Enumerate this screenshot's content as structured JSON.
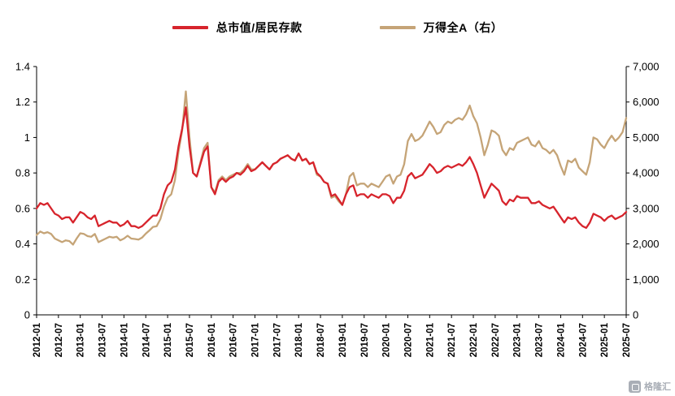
{
  "legend": [
    {
      "label": "总市值/居民存款",
      "color": "#d7242c"
    },
    {
      "label": "万得全A（右）",
      "color": "#c5a477"
    }
  ],
  "watermark": {
    "text": "格隆汇"
  },
  "chart_data": {
    "type": "line",
    "title": "",
    "xlabel": "",
    "ylabel_left": "",
    "ylabel_right": "",
    "grid": false,
    "legend_position": "top-center",
    "x": [
      "2012-01",
      "2012-02",
      "2012-03",
      "2012-04",
      "2012-05",
      "2012-06",
      "2012-07",
      "2012-08",
      "2012-09",
      "2012-10",
      "2012-11",
      "2012-12",
      "2013-01",
      "2013-02",
      "2013-03",
      "2013-04",
      "2013-05",
      "2013-06",
      "2013-07",
      "2013-08",
      "2013-09",
      "2013-10",
      "2013-11",
      "2013-12",
      "2014-01",
      "2014-02",
      "2014-03",
      "2014-04",
      "2014-05",
      "2014-06",
      "2014-07",
      "2014-08",
      "2014-09",
      "2014-10",
      "2014-11",
      "2014-12",
      "2015-01",
      "2015-02",
      "2015-03",
      "2015-04",
      "2015-05",
      "2015-06",
      "2015-07",
      "2015-08",
      "2015-09",
      "2015-10",
      "2015-11",
      "2015-12",
      "2016-01",
      "2016-02",
      "2016-03",
      "2016-04",
      "2016-05",
      "2016-06",
      "2016-07",
      "2016-08",
      "2016-09",
      "2016-10",
      "2016-11",
      "2016-12",
      "2017-01",
      "2017-02",
      "2017-03",
      "2017-04",
      "2017-05",
      "2017-06",
      "2017-07",
      "2017-08",
      "2017-09",
      "2017-10",
      "2017-11",
      "2017-12",
      "2018-01",
      "2018-02",
      "2018-03",
      "2018-04",
      "2018-05",
      "2018-06",
      "2018-07",
      "2018-08",
      "2018-09",
      "2018-10",
      "2018-11",
      "2018-12",
      "2019-01",
      "2019-02",
      "2019-03",
      "2019-04",
      "2019-05",
      "2019-06",
      "2019-07",
      "2019-08",
      "2019-09",
      "2019-10",
      "2019-11",
      "2019-12",
      "2020-01",
      "2020-02",
      "2020-03",
      "2020-04",
      "2020-05",
      "2020-06",
      "2020-07",
      "2020-08",
      "2020-09",
      "2020-10",
      "2020-11",
      "2020-12",
      "2021-01",
      "2021-02",
      "2021-03",
      "2021-04",
      "2021-05",
      "2021-06",
      "2021-07",
      "2021-08",
      "2021-09",
      "2021-10",
      "2021-11",
      "2021-12",
      "2022-01",
      "2022-02",
      "2022-03",
      "2022-04",
      "2022-05",
      "2022-06",
      "2022-07",
      "2022-08",
      "2022-09",
      "2022-10",
      "2022-11",
      "2022-12",
      "2023-01",
      "2023-02",
      "2023-03",
      "2023-04",
      "2023-05",
      "2023-06",
      "2023-07",
      "2023-08",
      "2023-09",
      "2023-10",
      "2023-11",
      "2023-12",
      "2024-01",
      "2024-02",
      "2024-03",
      "2024-04",
      "2024-05",
      "2024-06",
      "2024-07",
      "2024-08",
      "2024-09",
      "2024-10",
      "2024-11",
      "2024-12",
      "2025-01",
      "2025-02",
      "2025-03",
      "2025-04",
      "2025-05",
      "2025-06",
      "2025-07"
    ],
    "x_tick_labels": [
      "2012-01",
      "2012-07",
      "2013-01",
      "2013-07",
      "2014-01",
      "2014-07",
      "2015-01",
      "2015-07",
      "2016-01",
      "2016-07",
      "2017-01",
      "2017-07",
      "2018-01",
      "2018-07",
      "2019-01",
      "2019-07",
      "2020-01",
      "2020-07",
      "2021-01",
      "2021-07",
      "2022-01",
      "2022-07",
      "2023-01",
      "2023-07",
      "2024-01",
      "2024-07",
      "2025-01",
      "2025-07"
    ],
    "x_tick_step_months": 6,
    "series": [
      {
        "name": "总市值/居民存款",
        "axis": "left",
        "color": "#d7242c",
        "values": [
          0.6,
          0.63,
          0.62,
          0.63,
          0.6,
          0.57,
          0.56,
          0.54,
          0.55,
          0.55,
          0.52,
          0.55,
          0.58,
          0.57,
          0.55,
          0.54,
          0.56,
          0.5,
          0.51,
          0.52,
          0.53,
          0.52,
          0.52,
          0.5,
          0.51,
          0.53,
          0.5,
          0.5,
          0.49,
          0.5,
          0.52,
          0.54,
          0.56,
          0.56,
          0.6,
          0.68,
          0.73,
          0.75,
          0.82,
          0.95,
          1.05,
          1.17,
          0.95,
          0.8,
          0.78,
          0.85,
          0.92,
          0.95,
          0.72,
          0.68,
          0.75,
          0.77,
          0.75,
          0.77,
          0.78,
          0.8,
          0.79,
          0.81,
          0.84,
          0.81,
          0.82,
          0.84,
          0.86,
          0.84,
          0.82,
          0.85,
          0.86,
          0.88,
          0.89,
          0.9,
          0.88,
          0.87,
          0.91,
          0.87,
          0.88,
          0.85,
          0.86,
          0.8,
          0.78,
          0.75,
          0.74,
          0.67,
          0.68,
          0.65,
          0.62,
          0.68,
          0.72,
          0.73,
          0.67,
          0.68,
          0.68,
          0.66,
          0.68,
          0.67,
          0.66,
          0.68,
          0.68,
          0.67,
          0.63,
          0.66,
          0.66,
          0.7,
          0.78,
          0.8,
          0.77,
          0.78,
          0.79,
          0.82,
          0.85,
          0.83,
          0.8,
          0.81,
          0.83,
          0.84,
          0.83,
          0.84,
          0.85,
          0.84,
          0.86,
          0.89,
          0.85,
          0.8,
          0.73,
          0.66,
          0.7,
          0.74,
          0.72,
          0.7,
          0.64,
          0.62,
          0.65,
          0.64,
          0.67,
          0.66,
          0.66,
          0.66,
          0.63,
          0.63,
          0.64,
          0.62,
          0.61,
          0.6,
          0.61,
          0.58,
          0.55,
          0.52,
          0.55,
          0.54,
          0.55,
          0.52,
          0.5,
          0.49,
          0.52,
          0.57,
          0.56,
          0.55,
          0.53,
          0.55,
          0.56,
          0.54,
          0.55,
          0.56,
          0.58
        ]
      },
      {
        "name": "万得全A（右）",
        "axis": "right",
        "color": "#c5a477",
        "values": [
          2250,
          2350,
          2300,
          2330,
          2280,
          2150,
          2100,
          2050,
          2100,
          2080,
          1980,
          2150,
          2300,
          2280,
          2220,
          2200,
          2280,
          2050,
          2100,
          2150,
          2200,
          2180,
          2200,
          2100,
          2150,
          2230,
          2150,
          2140,
          2120,
          2180,
          2290,
          2380,
          2480,
          2500,
          2700,
          3050,
          3300,
          3400,
          3800,
          4600,
          5200,
          6300,
          5000,
          4000,
          3900,
          4300,
          4700,
          4850,
          3600,
          3450,
          3800,
          3900,
          3800,
          3900,
          3950,
          4000,
          4000,
          4100,
          4250,
          4100,
          4100,
          4200,
          4300,
          4200,
          4100,
          4250,
          4300,
          4400,
          4450,
          4500,
          4400,
          4350,
          4550,
          4350,
          4400,
          4250,
          4300,
          3950,
          3900,
          3750,
          3700,
          3300,
          3350,
          3200,
          3100,
          3400,
          3900,
          4000,
          3650,
          3700,
          3700,
          3600,
          3700,
          3650,
          3600,
          3750,
          3900,
          3950,
          3700,
          3900,
          3950,
          4250,
          4900,
          5100,
          4900,
          4950,
          5050,
          5250,
          5450,
          5300,
          5100,
          5150,
          5350,
          5450,
          5400,
          5500,
          5550,
          5500,
          5650,
          5900,
          5600,
          5400,
          5000,
          4500,
          4800,
          5200,
          5150,
          5050,
          4650,
          4500,
          4700,
          4650,
          4850,
          4900,
          4950,
          5000,
          4800,
          4750,
          4900,
          4700,
          4650,
          4550,
          4650,
          4500,
          4200,
          3950,
          4350,
          4300,
          4400,
          4150,
          4050,
          3950,
          4300,
          5000,
          4950,
          4800,
          4700,
          4900,
          5050,
          4900,
          5000,
          5150,
          5550
        ]
      }
    ],
    "left_axis": {
      "min": 0,
      "max": 1.4,
      "ticks": [
        0,
        0.2,
        0.4,
        0.6,
        0.8,
        1,
        1.2,
        1.4
      ],
      "tick_labels": [
        "0",
        "0.2",
        "0.4",
        "0.6",
        "0.8",
        "1",
        "1.2",
        "1.4"
      ]
    },
    "right_axis": {
      "min": 0,
      "max": 7000,
      "ticks": [
        0,
        1000,
        2000,
        3000,
        4000,
        5000,
        6000,
        7000
      ],
      "tick_labels": [
        "0",
        "1,000",
        "2,000",
        "3,000",
        "4,000",
        "5,000",
        "6,000",
        "7,000"
      ]
    }
  }
}
